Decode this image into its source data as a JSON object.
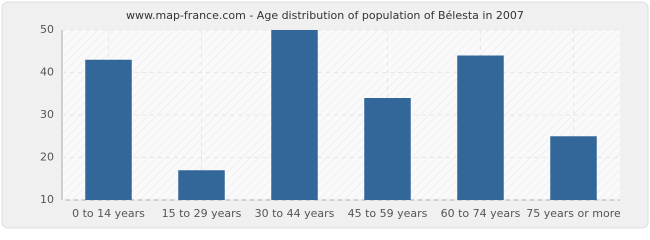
{
  "chart_data": {
    "type": "bar",
    "title": "www.map-france.com - Age distribution of population of Bélesta in 2007",
    "categories": [
      "0 to 14 years",
      "15 to 29 years",
      "30 to 44 years",
      "45 to 59 years",
      "60 to 74 years",
      "75 years or more"
    ],
    "values": [
      43,
      17,
      50,
      34,
      44,
      25
    ],
    "color": "#336699",
    "ylim": [
      10,
      50
    ],
    "yticks": [
      10,
      20,
      30,
      40,
      50
    ],
    "grid": true
  }
}
